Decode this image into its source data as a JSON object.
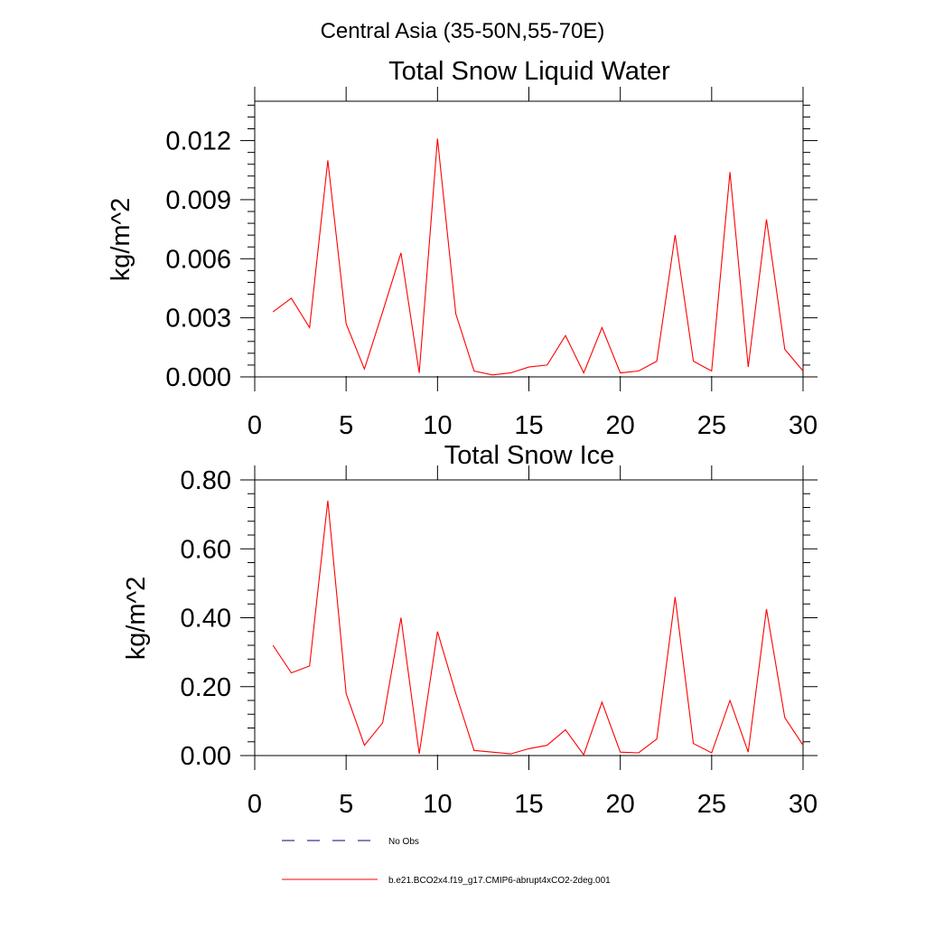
{
  "figure": {
    "title": "Central Asia (35-50N,55-70E)"
  },
  "chart_data": [
    {
      "type": "line",
      "title": "Total Snow Liquid Water",
      "xlabel": "",
      "ylabel": "kg/m^2",
      "xlim": [
        0,
        30
      ],
      "ylim": [
        0,
        0.014
      ],
      "xticks": [
        0,
        5,
        10,
        15,
        20,
        25,
        30
      ],
      "xtick_labels": [
        "0",
        "5",
        "10",
        "15",
        "20",
        "25",
        "30"
      ],
      "yticks": [
        0,
        0.003,
        0.006,
        0.009,
        0.012
      ],
      "ytick_labels": [
        "0.000",
        "0.003",
        "0.006",
        "0.009",
        "0.012"
      ],
      "grid": false,
      "x": [
        1,
        2,
        3,
        4,
        5,
        6,
        7,
        8,
        9,
        10,
        11,
        12,
        13,
        14,
        15,
        16,
        17,
        18,
        19,
        20,
        21,
        22,
        23,
        24,
        25,
        26,
        27,
        28,
        29,
        30
      ],
      "series": [
        {
          "name": "b.e21.BCO2x4.f19_g17.CMIP6-abrupt4xCO2-2deg.001",
          "color": "#ff0000",
          "values": [
            0.0033,
            0.004,
            0.0025,
            0.011,
            0.0027,
            0.0004,
            0.0033,
            0.0063,
            0.0002,
            0.0121,
            0.0032,
            0.0003,
            0.0001,
            0.0002,
            0.0005,
            0.0006,
            0.0021,
            0.0002,
            0.0025,
            0.0002,
            0.0003,
            0.0008,
            0.0072,
            0.0008,
            0.0003,
            0.0104,
            0.0005,
            0.008,
            0.0014,
            0.0003
          ]
        }
      ]
    },
    {
      "type": "line",
      "title": "Total Snow Ice",
      "xlabel": "",
      "ylabel": "kg/m^2",
      "xlim": [
        0,
        30
      ],
      "ylim": [
        0,
        0.8
      ],
      "xticks": [
        0,
        5,
        10,
        15,
        20,
        25,
        30
      ],
      "xtick_labels": [
        "0",
        "5",
        "10",
        "15",
        "20",
        "25",
        "30"
      ],
      "yticks": [
        0,
        0.2,
        0.4,
        0.6,
        0.8
      ],
      "ytick_labels": [
        "0.00",
        "0.20",
        "0.40",
        "0.60",
        "0.80"
      ],
      "grid": false,
      "x": [
        1,
        2,
        3,
        4,
        5,
        6,
        7,
        8,
        9,
        10,
        11,
        12,
        13,
        14,
        15,
        16,
        17,
        18,
        19,
        20,
        21,
        22,
        23,
        24,
        25,
        26,
        27,
        28,
        29,
        30
      ],
      "series": [
        {
          "name": "b.e21.BCO2x4.f19_g17.CMIP6-abrupt4xCO2-2deg.001",
          "color": "#ff0000",
          "values": [
            0.32,
            0.24,
            0.26,
            0.74,
            0.18,
            0.03,
            0.095,
            0.4,
            0.005,
            0.36,
            0.18,
            0.015,
            0.01,
            0.005,
            0.02,
            0.03,
            0.075,
            0.002,
            0.155,
            0.01,
            0.008,
            0.048,
            0.46,
            0.035,
            0.008,
            0.16,
            0.01,
            0.425,
            0.11,
            0.03
          ]
        }
      ]
    }
  ],
  "legend": {
    "placement": "bottom",
    "items": [
      {
        "label": "No Obs",
        "color": "#000080",
        "style": "dashed"
      },
      {
        "label": "b.e21.BCO2x4.f19_g17.CMIP6-abrupt4xCO2-2deg.001",
        "color": "#ff0000",
        "style": "solid"
      }
    ]
  }
}
